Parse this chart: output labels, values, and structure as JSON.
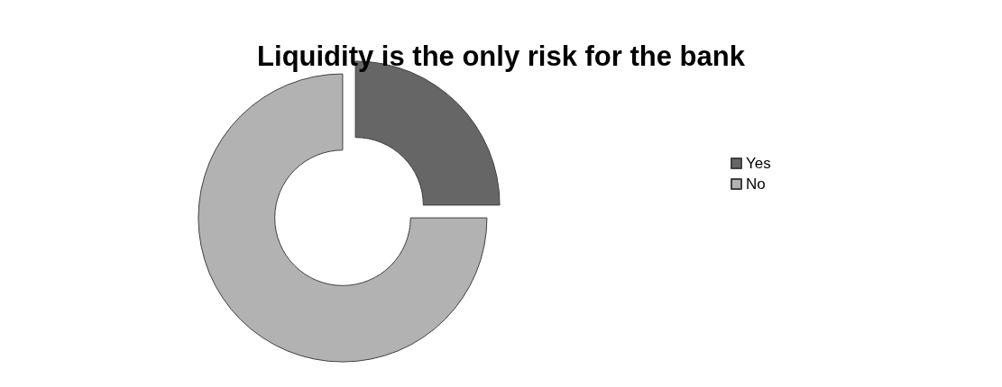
{
  "chart_data": {
    "type": "donut",
    "title": "Liquidity is the only risk for the bank",
    "categories": [
      "Yes",
      "No"
    ],
    "values": [
      25,
      75
    ],
    "colors": [
      "#666666",
      "#b2b2b2"
    ],
    "legend": "right"
  }
}
